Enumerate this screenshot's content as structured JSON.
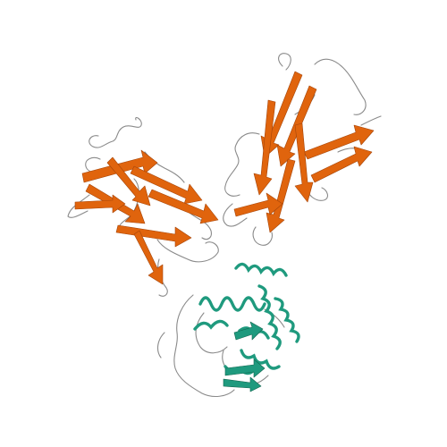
{
  "image": {
    "background": "#ffffff",
    "subject": "protein-ribbon-cartoon"
  },
  "colors": {
    "domain_1": "#e0640d",
    "domain_1_dark": "#a5450a",
    "domain_2": "#1f9a7e",
    "domain_2_dark": "#12664f",
    "loop": "#8a8a8a"
  }
}
